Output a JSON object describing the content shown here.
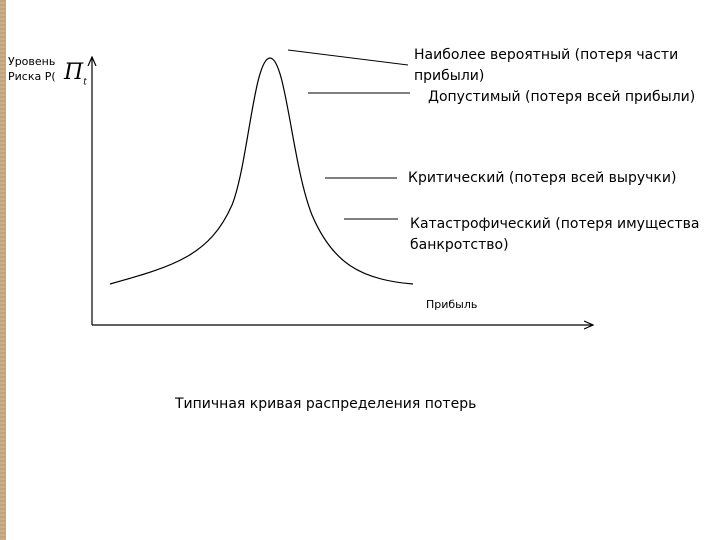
{
  "y_axis": {
    "label_line1": "Уровень",
    "label_line2": "Риска P(",
    "symbol": "П",
    "symbol_sub": "t"
  },
  "x_axis": {
    "label": "Прибыль"
  },
  "zones": {
    "most_probable_line1": "Наиболее вероятный (потеря части",
    "most_probable_line2": "прибыли)",
    "allowable": "Допустимый (потеря всей прибыли)",
    "critical": "Критический (потеря всей выручки)",
    "catastrophic_line1": "Катастрофический (потеря имущества",
    "catastrophic_line2": "банкротство)"
  },
  "caption": "Типичная кривая распределения потерь",
  "colors": {
    "side_stripe": "#c8a982",
    "line": "#000000"
  }
}
